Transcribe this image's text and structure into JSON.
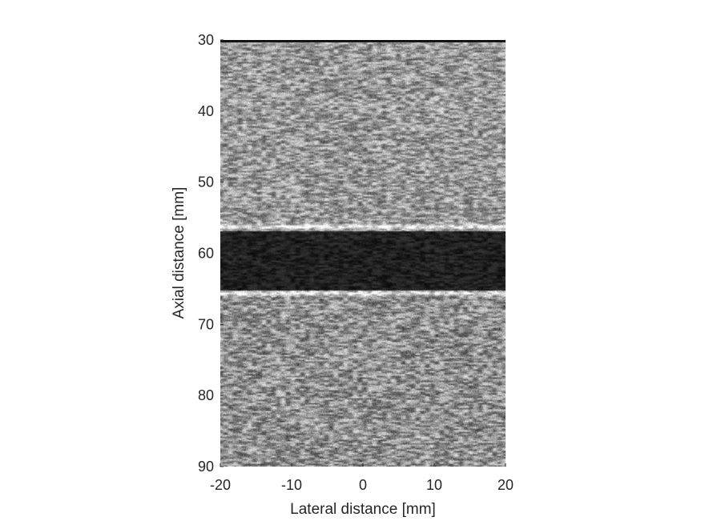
{
  "chart_data": {
    "type": "heatmap",
    "title": "",
    "xlabel": "Lateral distance [mm]",
    "ylabel": "Axial distance [mm]",
    "xlim": [
      -20,
      20
    ],
    "ylim": [
      30,
      90
    ],
    "y_direction": "reversed",
    "x_ticks": [
      -20,
      -10,
      0,
      10,
      20
    ],
    "y_ticks": [
      30,
      40,
      50,
      60,
      70,
      80,
      90
    ],
    "colormap": "gray",
    "grid": false,
    "legend": "none",
    "regions": [
      {
        "from_mm": 30.0,
        "to_mm": 56.8,
        "mean_intensity": 0.6,
        "speckle": 0.36
      },
      {
        "from_mm": 56.8,
        "to_mm": 65.2,
        "mean_intensity": 0.13,
        "speckle": 0.12
      },
      {
        "from_mm": 65.2,
        "to_mm": 90.0,
        "mean_intensity": 0.57,
        "speckle": 0.38
      }
    ],
    "bright_edges_mm": [
      30.0,
      56.2,
      65.6
    ],
    "colors": {
      "axis": "#262626",
      "background": "#ffffff"
    }
  }
}
